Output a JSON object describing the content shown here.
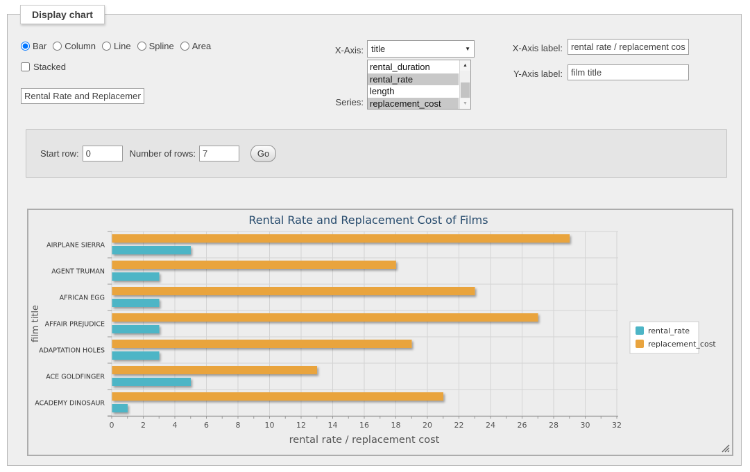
{
  "panel": {
    "legend_label": "Display chart"
  },
  "chart_types": [
    {
      "label": "Bar",
      "selected": true
    },
    {
      "label": "Column",
      "selected": false
    },
    {
      "label": "Line",
      "selected": false
    },
    {
      "label": "Spline",
      "selected": false
    },
    {
      "label": "Area",
      "selected": false
    }
  ],
  "stacked": {
    "label": "Stacked",
    "checked": false
  },
  "chart_title_input": {
    "value": "Rental Rate and Replacement Cost of Films"
  },
  "x_axis": {
    "label": "X-Axis:",
    "selected": "title"
  },
  "series_picker": {
    "label": "Series:",
    "options": [
      {
        "label": "rental_duration",
        "selected": false
      },
      {
        "label": "rental_rate",
        "selected": true
      },
      {
        "label": "length",
        "selected": false
      },
      {
        "label": "replacement_cost",
        "selected": true
      }
    ]
  },
  "x_axis_label": {
    "label": "X-Axis label:",
    "value": "rental rate / replacement cost"
  },
  "y_axis_label": {
    "label": "Y-Axis label:",
    "value": "film title"
  },
  "rows_form": {
    "start_row_label": "Start row:",
    "start_row_value": "0",
    "num_rows_label": "Number of rows:",
    "num_rows_value": "7",
    "go_label": "Go"
  },
  "icons": {
    "dropdown": "▼",
    "scroll_up": "▲",
    "scroll_down": "▼"
  },
  "chart_data": {
    "type": "bar",
    "title": "Rental Rate and Replacement Cost of Films",
    "xlabel": "rental rate / replacement cost",
    "ylabel": "film title",
    "xlim": [
      0,
      32
    ],
    "xtick_interval": 2,
    "grid": true,
    "legend_position": "right",
    "categories": [
      "AIRPLANE SIERRA",
      "AGENT TRUMAN",
      "AFRICAN EGG",
      "AFFAIR PREJUDICE",
      "ADAPTATION HOLES",
      "ACE GOLDFINGER",
      "ACADEMY DINOSAUR"
    ],
    "series": [
      {
        "name": "rental_rate",
        "color": "#4db5c6",
        "values": [
          4.99,
          2.99,
          2.99,
          2.99,
          2.99,
          4.99,
          0.99
        ]
      },
      {
        "name": "replacement_cost",
        "color": "#e9a43e",
        "values": [
          28.99,
          17.99,
          22.99,
          26.99,
          18.99,
          12.99,
          20.99
        ]
      }
    ],
    "colors": {
      "title": "#274b6d",
      "tick_label": "#555555",
      "category_label": "#333333",
      "grid_line": "#d4d4d4",
      "axis_line": "#999999"
    }
  }
}
